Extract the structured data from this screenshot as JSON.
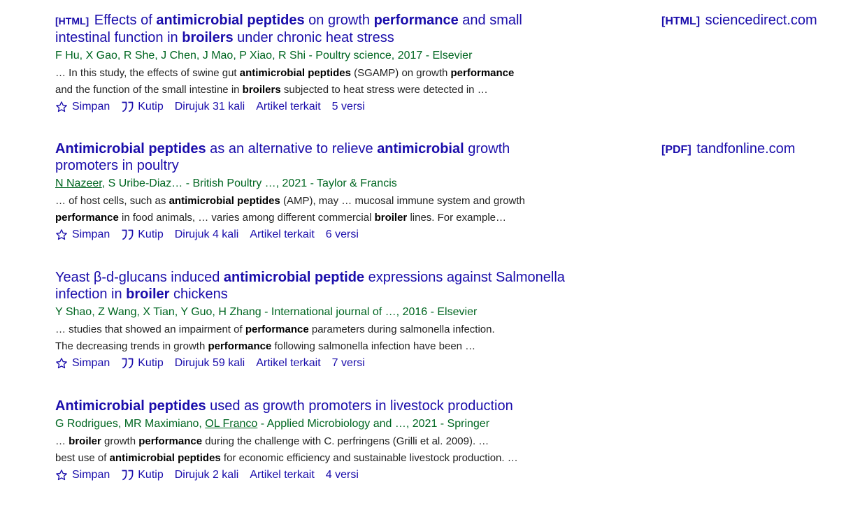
{
  "colors": {
    "link": "#1a0dab",
    "authors": "#006621",
    "text": "#222222"
  },
  "actions": {
    "save": "Simpan",
    "cite": "Kutip",
    "related": "Artikel terkait",
    "save_icon": "star-icon",
    "cite_icon": "quote-icon"
  },
  "results": [
    {
      "tag": "[HTML]",
      "title_parts": [
        "Effects of ",
        "antimicrobial peptides",
        " on growth ",
        "performance",
        " and small intestinal function in ",
        "broilers",
        " under chronic heat stress"
      ],
      "authors": "F Hu, X Gao, R She, J Chen, J Mao, P Xiao, R Shi - Poultry science, 2017 - Elsevier",
      "snippet1_parts": [
        "… In this study, the effects of swine gut ",
        "antimicrobial peptides",
        " (SGAMP) on growth ",
        "performance"
      ],
      "snippet2_parts": [
        "and the function of the small intestine in ",
        "broilers",
        " subjected to heat stress were detected in …"
      ],
      "cited": "Dirujuk 31 kali",
      "versions": "5 versi"
    },
    {
      "tag": "",
      "title_parts": [
        "Antimicrobial peptides",
        " as an alternative to relieve ",
        "antimicrobial",
        " growth promoters in poultry"
      ],
      "author_link": "N Nazeer",
      "authors_rest": ", S Uribe-Diaz… - British Poultry …, 2021 - Taylor & Francis",
      "snippet1_parts": [
        "… of host cells, such as ",
        "antimicrobial peptides",
        " (AMP), may … mucosal immune system and growth"
      ],
      "snippet2_parts": [
        "performance",
        " in food animals, … varies among different commercial ",
        "broiler",
        " lines. For example…"
      ],
      "cited": "Dirujuk 4 kali",
      "versions": "6 versi"
    },
    {
      "tag": "",
      "title_parts": [
        "Yeast β-d-glucans induced ",
        "antimicrobial peptide",
        " expressions against Salmonella infection in ",
        "broiler",
        " chickens"
      ],
      "authors": "Y Shao, Z Wang, X Tian, Y Guo, H Zhang - International journal of …, 2016 - Elsevier",
      "snippet1_parts": [
        "… studies that showed an impairment of ",
        "performance",
        " parameters during salmonella infection."
      ],
      "snippet2_parts": [
        "The decreasing trends in growth ",
        "performance",
        " following salmonella infection have been …"
      ],
      "cited": "Dirujuk 59 kali",
      "versions": "7 versi"
    },
    {
      "tag": "",
      "title_parts": [
        "Antimicrobial peptides",
        " used as growth promoters in livestock production"
      ],
      "authors_a": "G Rodrigues, MR Maximiano, ",
      "author_link": "OL Franco",
      "authors_b": " - Applied Microbiology and …, 2021 - Springer",
      "snippet1_parts": [
        "… ",
        "broiler",
        " growth ",
        "performance",
        " during the challenge with C. perfringens (Grilli et al. 2009). …"
      ],
      "snippet2_parts": [
        "best use of ",
        "antimicrobial peptides",
        " for economic efficiency and sustainable livestock production. …"
      ],
      "cited": "Dirujuk 2 kali",
      "versions": "4 versi"
    }
  ],
  "side_links": [
    {
      "tag": "[HTML]",
      "domain": "sciencedirect.com"
    },
    {
      "tag": "[PDF]",
      "domain": "tandfonline.com"
    }
  ]
}
